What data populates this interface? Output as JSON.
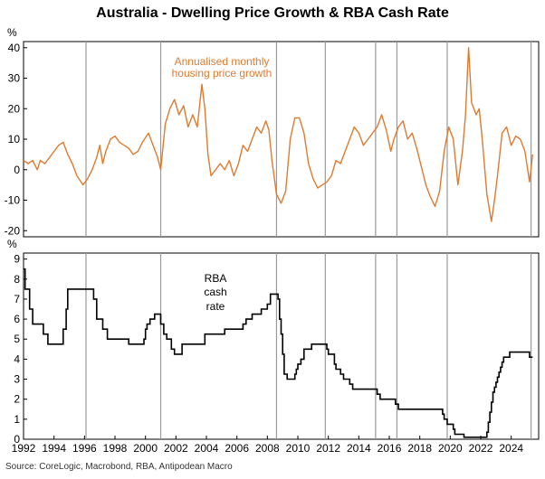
{
  "title": "Australia - Dwelling Price Growth & RBA Cash Rate",
  "source": "Source: CoreLogic, Macrobond, RBA, Antipodean Macro",
  "colors": {
    "housing": "#e07a2e",
    "cash_rate": "#000000",
    "vlines": "#9a9a9a"
  },
  "chart_data": [
    {
      "type": "line",
      "unit_label": "%",
      "annotation": [
        "Annualised monthly",
        "housing price growth"
      ],
      "ylim": [
        -22,
        42
      ],
      "yticks": [
        40,
        30,
        20,
        10,
        0,
        -10,
        -20
      ],
      "xlim": [
        1992,
        2025.8
      ],
      "vertical_lines": [
        1996.1,
        2001.0,
        2008.6,
        2011.8,
        2015.1,
        2016.5,
        2019.8,
        2025.3
      ],
      "series": [
        {
          "values": [
            [
              1992.0,
              3
            ],
            [
              1992.3,
              2
            ],
            [
              1992.6,
              3
            ],
            [
              1992.9,
              0
            ],
            [
              1993.1,
              3
            ],
            [
              1993.4,
              2
            ],
            [
              1993.7,
              4
            ],
            [
              1994.0,
              6
            ],
            [
              1994.3,
              8
            ],
            [
              1994.6,
              9
            ],
            [
              1994.9,
              5
            ],
            [
              1995.2,
              2
            ],
            [
              1995.5,
              -2
            ],
            [
              1995.9,
              -5
            ],
            [
              1996.2,
              -3
            ],
            [
              1996.5,
              0
            ],
            [
              1996.8,
              4
            ],
            [
              1997.0,
              8
            ],
            [
              1997.2,
              2
            ],
            [
              1997.4,
              6
            ],
            [
              1997.7,
              10
            ],
            [
              1998.0,
              11
            ],
            [
              1998.3,
              9
            ],
            [
              1998.6,
              8
            ],
            [
              1998.9,
              7
            ],
            [
              1999.2,
              5
            ],
            [
              1999.5,
              6
            ],
            [
              1999.8,
              9
            ],
            [
              2000.2,
              12
            ],
            [
              2000.5,
              8
            ],
            [
              2000.8,
              4
            ],
            [
              2001.0,
              0
            ],
            [
              2001.3,
              15
            ],
            [
              2001.6,
              20
            ],
            [
              2001.9,
              23
            ],
            [
              2002.2,
              18
            ],
            [
              2002.5,
              21
            ],
            [
              2002.8,
              14
            ],
            [
              2003.1,
              18
            ],
            [
              2003.4,
              14
            ],
            [
              2003.7,
              28
            ],
            [
              2003.9,
              20
            ],
            [
              2004.1,
              5
            ],
            [
              2004.3,
              -2
            ],
            [
              2004.6,
              0
            ],
            [
              2004.9,
              2
            ],
            [
              2005.2,
              0
            ],
            [
              2005.5,
              3
            ],
            [
              2005.8,
              -2
            ],
            [
              2006.1,
              2
            ],
            [
              2006.4,
              8
            ],
            [
              2006.7,
              6
            ],
            [
              2007.0,
              10
            ],
            [
              2007.3,
              14
            ],
            [
              2007.6,
              12
            ],
            [
              2007.9,
              16
            ],
            [
              2008.1,
              13
            ],
            [
              2008.3,
              3
            ],
            [
              2008.6,
              -8
            ],
            [
              2008.9,
              -11
            ],
            [
              2009.2,
              -7
            ],
            [
              2009.5,
              10
            ],
            [
              2009.8,
              17
            ],
            [
              2010.1,
              17
            ],
            [
              2010.4,
              12
            ],
            [
              2010.7,
              2
            ],
            [
              2011.0,
              -3
            ],
            [
              2011.3,
              -6
            ],
            [
              2011.6,
              -5
            ],
            [
              2011.9,
              -4
            ],
            [
              2012.2,
              -2
            ],
            [
              2012.5,
              3
            ],
            [
              2012.8,
              2
            ],
            [
              2013.1,
              6
            ],
            [
              2013.4,
              10
            ],
            [
              2013.7,
              14
            ],
            [
              2014.0,
              12
            ],
            [
              2014.3,
              8
            ],
            [
              2014.6,
              10
            ],
            [
              2014.9,
              12
            ],
            [
              2015.2,
              14
            ],
            [
              2015.5,
              18
            ],
            [
              2015.8,
              13
            ],
            [
              2016.1,
              6
            ],
            [
              2016.3,
              10
            ],
            [
              2016.6,
              14
            ],
            [
              2016.9,
              16
            ],
            [
              2017.2,
              10
            ],
            [
              2017.5,
              12
            ],
            [
              2017.8,
              7
            ],
            [
              2018.1,
              1
            ],
            [
              2018.4,
              -5
            ],
            [
              2018.7,
              -9
            ],
            [
              2019.0,
              -12
            ],
            [
              2019.3,
              -7
            ],
            [
              2019.6,
              6
            ],
            [
              2019.9,
              14
            ],
            [
              2020.2,
              10
            ],
            [
              2020.5,
              -5
            ],
            [
              2020.8,
              6
            ],
            [
              2021.0,
              18
            ],
            [
              2021.2,
              40
            ],
            [
              2021.4,
              22
            ],
            [
              2021.7,
              18
            ],
            [
              2021.9,
              20
            ],
            [
              2022.1,
              10
            ],
            [
              2022.4,
              -8
            ],
            [
              2022.7,
              -17
            ],
            [
              2022.9,
              -10
            ],
            [
              2023.1,
              -2
            ],
            [
              2023.4,
              12
            ],
            [
              2023.7,
              14
            ],
            [
              2024.0,
              8
            ],
            [
              2024.3,
              11
            ],
            [
              2024.6,
              10
            ],
            [
              2024.9,
              6
            ],
            [
              2025.2,
              -4
            ],
            [
              2025.4,
              5
            ]
          ]
        }
      ]
    },
    {
      "type": "line",
      "unit_label": "%",
      "annotation": [
        "RBA",
        "cash",
        "rate"
      ],
      "ylim": [
        0,
        9.3
      ],
      "yticks": [
        9,
        8,
        7,
        6,
        5,
        4,
        3,
        2,
        1,
        0
      ],
      "xlim": [
        1992,
        2025.8
      ],
      "xtick_labels": [
        "1992",
        "1994",
        "1996",
        "1998",
        "2000",
        "2002",
        "2004",
        "2006",
        "2008",
        "2010",
        "2012",
        "2014",
        "2016",
        "2018",
        "2020",
        "2022",
        "2024"
      ],
      "vertical_lines": [
        1996.1,
        2001.0,
        2008.6,
        2011.8,
        2015.1,
        2016.5,
        2019.8,
        2025.3
      ],
      "series": [
        {
          "values": [
            [
              1992.0,
              8.5
            ],
            [
              1992.1,
              7.5
            ],
            [
              1992.4,
              6.5
            ],
            [
              1992.6,
              5.75
            ],
            [
              1993.3,
              5.25
            ],
            [
              1993.6,
              4.75
            ],
            [
              1994.6,
              5.5
            ],
            [
              1994.8,
              6.5
            ],
            [
              1994.9,
              7.5
            ],
            [
              1996.6,
              7.0
            ],
            [
              1996.8,
              6.0
            ],
            [
              1997.2,
              5.5
            ],
            [
              1997.5,
              5.0
            ],
            [
              1998.9,
              4.75
            ],
            [
              1999.9,
              5.0
            ],
            [
              2000.0,
              5.5
            ],
            [
              2000.1,
              5.75
            ],
            [
              2000.3,
              6.0
            ],
            [
              2000.6,
              6.25
            ],
            [
              2001.0,
              5.75
            ],
            [
              2001.2,
              5.25
            ],
            [
              2001.4,
              5.0
            ],
            [
              2001.7,
              4.5
            ],
            [
              2001.9,
              4.25
            ],
            [
              2002.4,
              4.75
            ],
            [
              2003.9,
              5.25
            ],
            [
              2005.2,
              5.5
            ],
            [
              2006.4,
              5.75
            ],
            [
              2006.6,
              6.0
            ],
            [
              2007.0,
              6.25
            ],
            [
              2007.6,
              6.5
            ],
            [
              2008.0,
              6.75
            ],
            [
              2008.2,
              7.25
            ],
            [
              2008.7,
              7.0
            ],
            [
              2008.8,
              6.0
            ],
            [
              2008.9,
              5.25
            ],
            [
              2009.0,
              4.25
            ],
            [
              2009.1,
              3.25
            ],
            [
              2009.3,
              3.0
            ],
            [
              2009.8,
              3.25
            ],
            [
              2009.9,
              3.5
            ],
            [
              2010.0,
              3.75
            ],
            [
              2010.2,
              4.0
            ],
            [
              2010.4,
              4.5
            ],
            [
              2010.9,
              4.75
            ],
            [
              2011.9,
              4.5
            ],
            [
              2012.0,
              4.25
            ],
            [
              2012.4,
              3.75
            ],
            [
              2012.5,
              3.5
            ],
            [
              2012.8,
              3.25
            ],
            [
              2013.0,
              3.0
            ],
            [
              2013.4,
              2.75
            ],
            [
              2013.6,
              2.5
            ],
            [
              2015.2,
              2.25
            ],
            [
              2015.4,
              2.0
            ],
            [
              2016.4,
              1.75
            ],
            [
              2016.6,
              1.5
            ],
            [
              2019.5,
              1.25
            ],
            [
              2019.6,
              1.0
            ],
            [
              2019.8,
              0.75
            ],
            [
              2020.2,
              0.5
            ],
            [
              2020.3,
              0.25
            ],
            [
              2020.9,
              0.1
            ],
            [
              2022.4,
              0.35
            ],
            [
              2022.5,
              0.85
            ],
            [
              2022.6,
              1.35
            ],
            [
              2022.7,
              1.85
            ],
            [
              2022.8,
              2.35
            ],
            [
              2022.9,
              2.6
            ],
            [
              2023.0,
              2.85
            ],
            [
              2023.1,
              3.1
            ],
            [
              2023.2,
              3.35
            ],
            [
              2023.3,
              3.6
            ],
            [
              2023.4,
              3.85
            ],
            [
              2023.5,
              4.1
            ],
            [
              2023.9,
              4.35
            ],
            [
              2025.2,
              4.1
            ],
            [
              2025.4,
              4.1
            ]
          ]
        }
      ]
    }
  ]
}
